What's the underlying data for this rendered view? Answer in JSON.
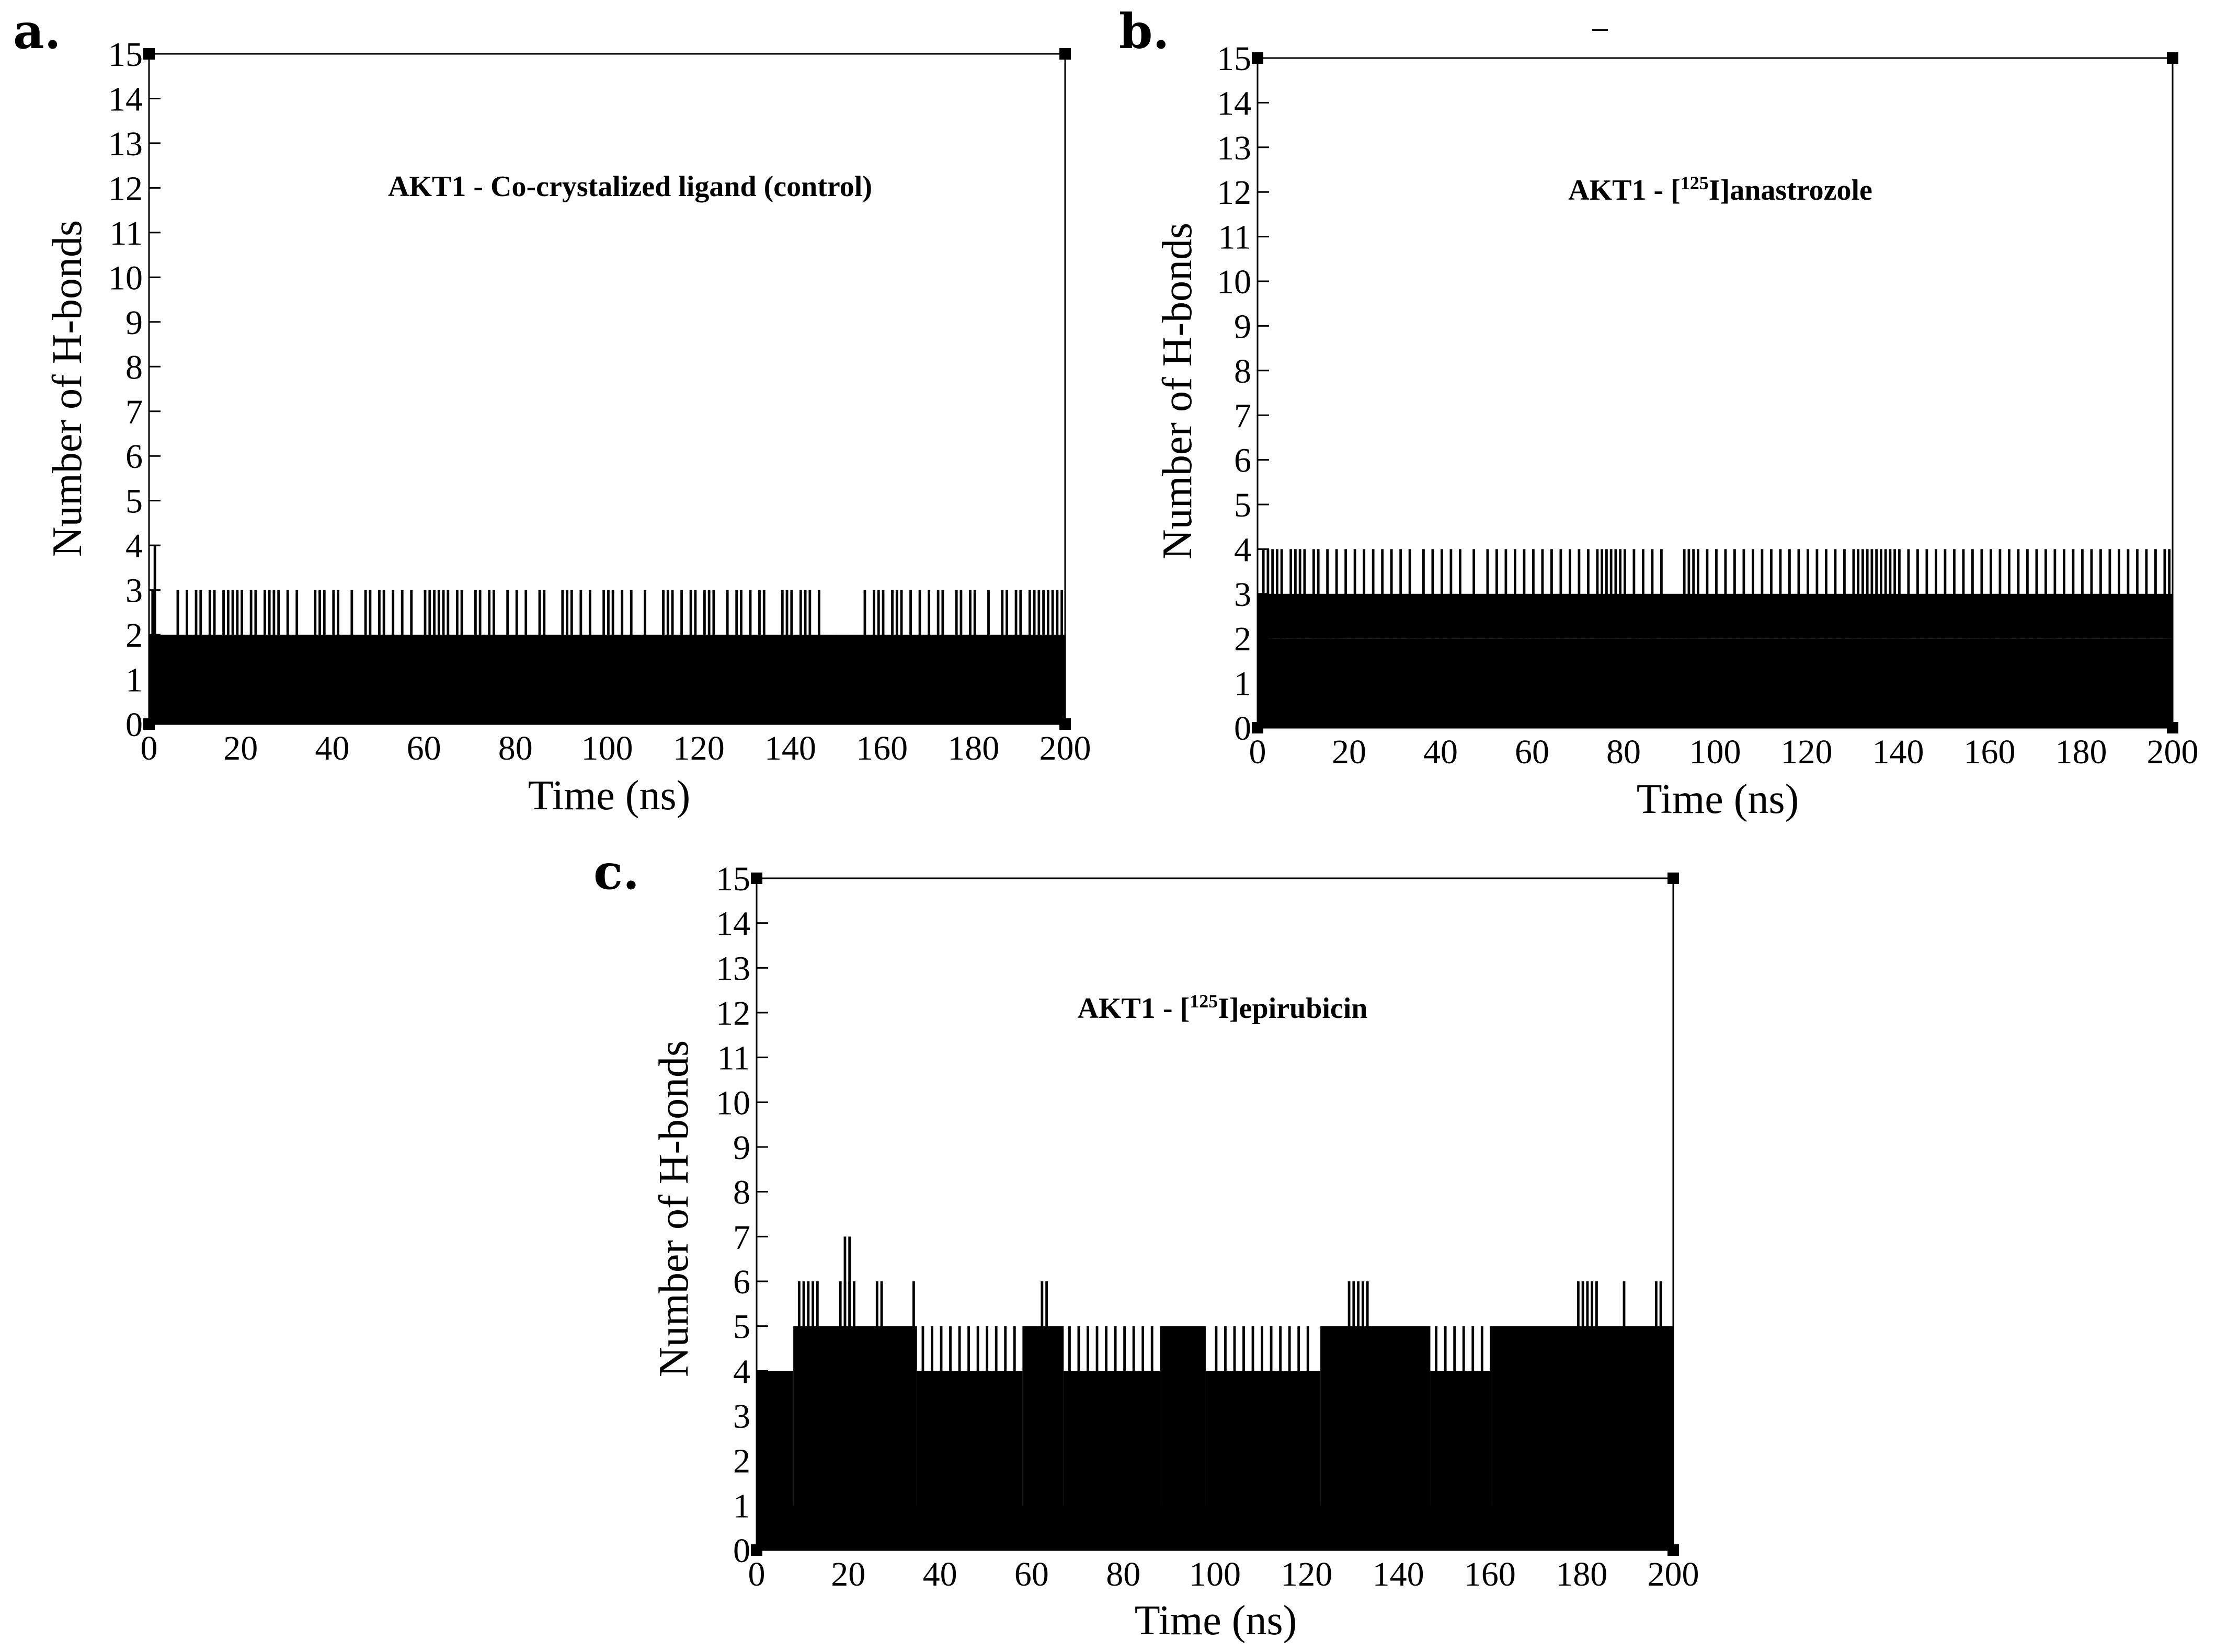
{
  "chart_data": [
    {
      "type": "bar",
      "panel": "a.",
      "title": "AKT1 - Co-crystalized ligand (control)",
      "title_parts": [
        "AKT1 - Co-crystalized ligand (control)"
      ],
      "xlabel": "Time (ns)",
      "ylabel": "Number of H-bonds",
      "xlim": [
        0,
        200
      ],
      "ylim": [
        0,
        15
      ],
      "xticks": [
        0,
        20,
        40,
        60,
        80,
        100,
        120,
        140,
        160,
        180,
        200
      ],
      "yticks": [
        0,
        1,
        2,
        3,
        4,
        5,
        6,
        7,
        8,
        9,
        10,
        11,
        12,
        13,
        14,
        15
      ],
      "series": [
        {
          "name": "H-bonds",
          "baseline": 2,
          "peak_times": [
            0.5,
            6,
            8,
            10,
            11,
            13,
            14,
            16,
            17,
            18,
            19,
            20,
            22,
            23,
            25,
            26,
            27,
            28,
            30,
            32,
            36,
            37,
            38,
            40,
            41,
            44,
            47,
            48,
            50,
            51,
            53,
            55,
            57,
            60,
            61,
            62,
            63,
            64,
            65,
            67,
            68,
            71,
            72,
            74,
            75,
            78,
            80,
            82,
            85,
            86,
            90,
            91,
            92,
            94,
            96,
            99,
            100,
            101,
            103,
            105,
            108,
            112,
            113,
            114,
            116,
            118,
            119,
            121,
            122,
            123,
            126,
            128,
            129,
            131,
            133,
            134,
            138,
            139,
            140,
            142,
            143,
            144,
            146,
            156,
            158,
            159,
            160,
            162,
            163,
            164,
            166,
            168,
            170,
            172,
            173,
            176,
            177,
            179,
            180,
            183,
            186,
            187,
            189,
            190,
            192,
            193,
            194,
            195,
            196,
            197,
            198,
            199
          ],
          "peak_value": 3,
          "spike_times": [
            1
          ],
          "spike_value": 4,
          "dip_times": [
            68,
            108,
            146,
            148,
            150,
            152,
            154,
            156
          ],
          "dip_value": 1,
          "zero_times": [
            26,
            60,
            64,
            110,
            126,
            146,
            180
          ]
        }
      ]
    },
    {
      "type": "bar",
      "panel": "b.",
      "title": "AKT1 - [125I]anastrozole",
      "title_parts": [
        "AKT1 - [",
        "125",
        "I]anastrozole"
      ],
      "xlabel": "Time (ns)",
      "ylabel": "Number of H-bonds",
      "xlim": [
        0,
        200
      ],
      "ylim": [
        0,
        15
      ],
      "xticks": [
        0,
        20,
        40,
        60,
        80,
        100,
        120,
        140,
        160,
        180,
        200
      ],
      "yticks": [
        0,
        1,
        2,
        3,
        4,
        5,
        6,
        7,
        8,
        9,
        10,
        11,
        12,
        13,
        14,
        15
      ],
      "series": [
        {
          "name": "H-bonds",
          "baseline": 2,
          "top": 3,
          "peak_times": [
            1,
            2,
            3,
            4,
            5,
            7,
            8,
            9,
            10,
            12,
            13,
            15,
            17,
            19,
            21,
            23,
            25,
            27,
            29,
            31,
            33,
            36,
            38,
            40,
            42,
            44,
            47,
            50,
            52,
            54,
            56,
            58,
            60,
            62,
            64,
            66,
            68,
            70,
            72,
            74,
            75,
            76,
            77,
            78,
            79,
            80,
            82,
            84,
            86,
            88,
            93,
            94,
            95,
            96,
            98,
            100,
            102,
            104,
            106,
            108,
            110,
            112,
            114,
            116,
            118,
            120,
            122,
            124,
            126,
            128,
            130,
            131,
            132,
            133,
            134,
            135,
            136,
            137,
            138,
            139,
            140,
            142,
            144,
            146,
            148,
            150,
            152,
            154,
            156,
            158,
            160,
            162,
            164,
            166,
            168,
            170,
            172,
            174,
            176,
            178,
            180,
            182,
            184,
            186,
            188,
            190,
            192,
            194,
            196,
            198,
            199
          ],
          "peak_value": 4,
          "dip_times": [
            1,
            3,
            5,
            6,
            8,
            10,
            12,
            14,
            15,
            16,
            17,
            18,
            33,
            35,
            36,
            38,
            40,
            42,
            54,
            55,
            56,
            57,
            58,
            59,
            60,
            61,
            62,
            63,
            65,
            82,
            83,
            85,
            86,
            87,
            89,
            90,
            91,
            92,
            94,
            116,
            118,
            120,
            122,
            124,
            126,
            128,
            130,
            132,
            134,
            136,
            138,
            140,
            142,
            155,
            157,
            158,
            159,
            160,
            161,
            163,
            164,
            166,
            168,
            170,
            172,
            174,
            176,
            178,
            199
          ],
          "dip_value": 1
        }
      ]
    },
    {
      "type": "bar",
      "panel": "c.",
      "title": "AKT1 - [125I]epirubicin",
      "title_parts": [
        "AKT1 - [",
        "125",
        "I]epirubicin"
      ],
      "xlabel": "Time (ns)",
      "ylabel": "Number of H-bonds",
      "xlim": [
        0,
        200
      ],
      "ylim": [
        0,
        15
      ],
      "xticks": [
        0,
        20,
        40,
        60,
        80,
        100,
        120,
        140,
        160,
        180,
        200
      ],
      "yticks": [
        0,
        1,
        2,
        3,
        4,
        5,
        6,
        7,
        8,
        9,
        10,
        11,
        12,
        13,
        14,
        15
      ],
      "series": [
        {
          "name": "H-bonds",
          "baseline": 1,
          "envelope": [
            {
              "from": 0,
              "to": 8,
              "value": 4
            },
            {
              "from": 8,
              "to": 35,
              "value": 5
            },
            {
              "from": 35,
              "to": 58,
              "value": 4
            },
            {
              "from": 58,
              "to": 67,
              "value": 5
            },
            {
              "from": 67,
              "to": 88,
              "value": 4
            },
            {
              "from": 88,
              "to": 98,
              "value": 5
            },
            {
              "from": 98,
              "to": 123,
              "value": 4
            },
            {
              "from": 123,
              "to": 147,
              "value": 5
            },
            {
              "from": 147,
              "to": 160,
              "value": 4
            },
            {
              "from": 160,
              "to": 200,
              "value": 5
            }
          ],
          "peak_times": [
            9,
            10,
            11,
            12,
            13,
            18,
            19,
            20,
            21,
            26,
            27,
            34,
            62,
            63,
            129,
            130,
            131,
            132,
            133,
            179,
            180,
            181,
            182,
            183,
            189,
            196,
            197
          ],
          "peak_value": 6,
          "spike_times": [
            19,
            20
          ],
          "spike_value": 7,
          "fill_times": [
            36,
            38,
            40,
            42,
            44,
            46,
            48,
            50,
            52,
            54,
            56,
            68,
            70,
            72,
            74,
            76,
            78,
            80,
            82,
            84,
            86,
            100,
            102,
            104,
            106,
            108,
            110,
            112,
            114,
            116,
            118,
            120,
            148,
            150,
            152,
            154,
            156,
            158
          ],
          "fill_value": 5,
          "dip_times": [
            2,
            3,
            4,
            5,
            6,
            69,
            110,
            148,
            150,
            152,
            154,
            156
          ],
          "dip_value": 2,
          "zero_times": [
            10,
            17,
            19,
            24,
            27,
            64,
            69,
            92,
            110,
            158,
            164,
            172,
            185,
            190
          ]
        }
      ]
    }
  ]
}
